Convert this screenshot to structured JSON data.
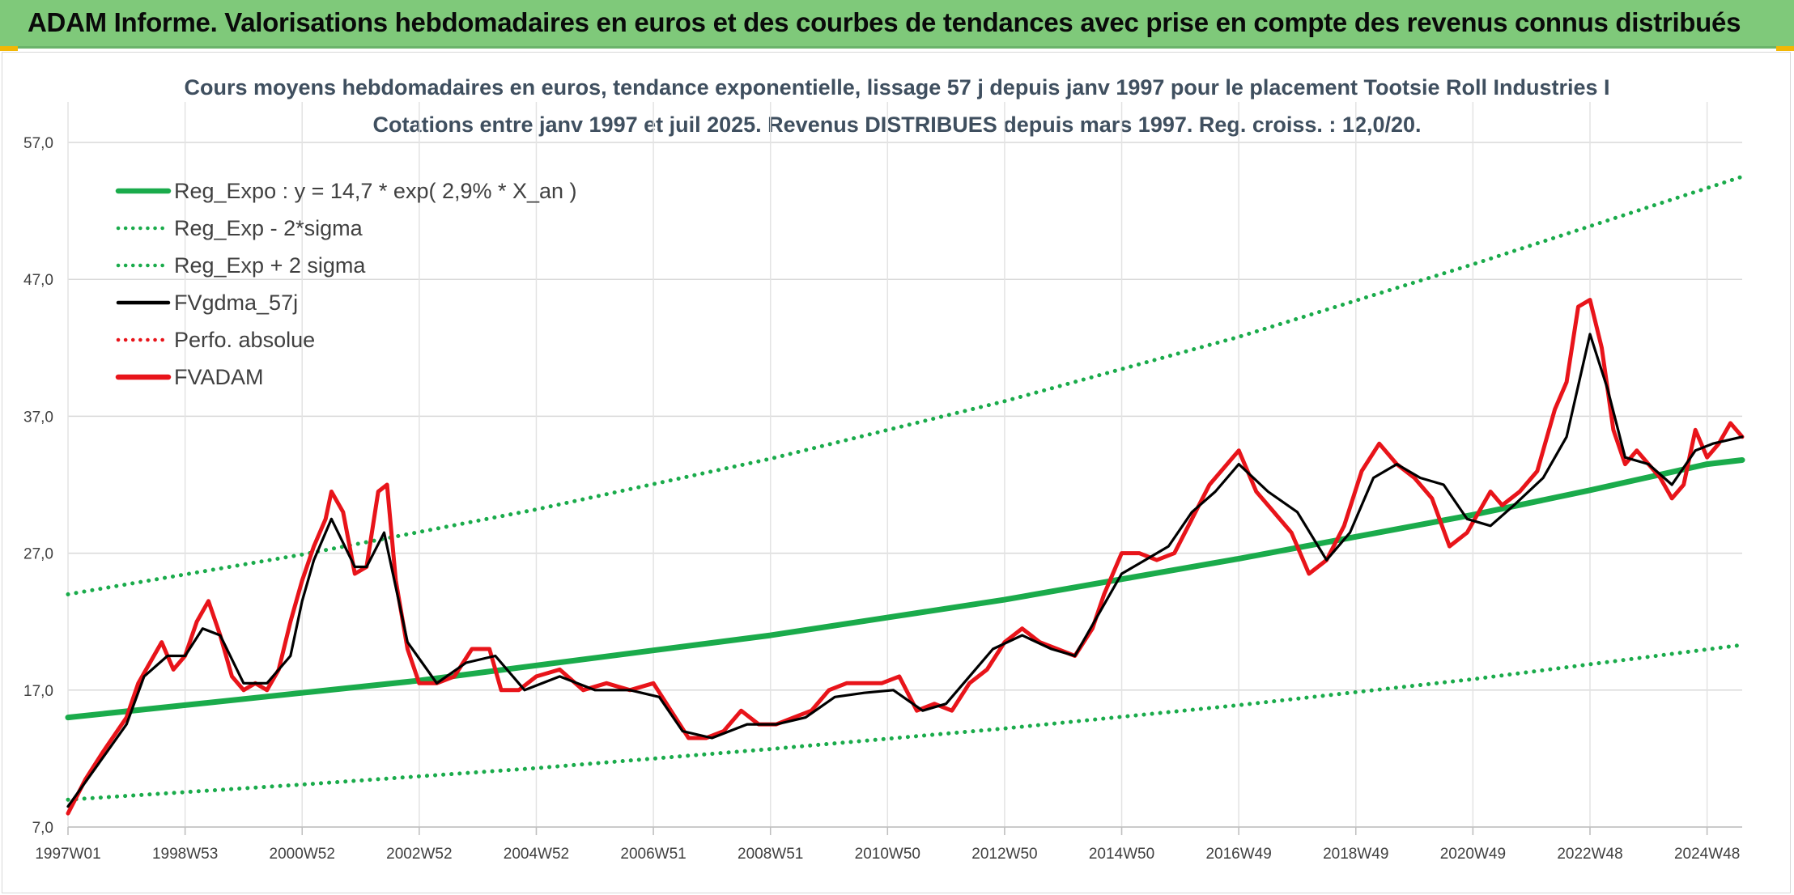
{
  "banner": {
    "title": "ADAM Informe. Valorisations hebdomadaires en euros et des courbes de tendances avec prise en compte des revenus connus distribués",
    "background": "#7fc97a"
  },
  "chart_data": {
    "type": "line",
    "title": "Cours moyens hebdomadaires en euros, tendance exponentielle, lissage 57 j depuis janv 1997 pour le placement Tootsie Roll Industries I",
    "subtitle": "Cotations entre janv 1997 et juil 2025. Revenus DISTRIBUES depuis mars 1997. Reg. croiss. : 12,0/20.",
    "xlabel": "",
    "ylabel": "",
    "ylim": [
      7.0,
      57.0
    ],
    "xlim": [
      1997.0,
      2025.6
    ],
    "y_ticks": [
      "57,0",
      "47,0",
      "37,0",
      "27,0",
      "17,0",
      "7,0"
    ],
    "y_tick_values": [
      57,
      47,
      37,
      27,
      17,
      7
    ],
    "x_ticks": [
      "1997W01",
      "1998W53",
      "2000W52",
      "2002W52",
      "2004W52",
      "2006W51",
      "2008W51",
      "2010W50",
      "2012W50",
      "2014W50",
      "2016W49",
      "2018W49",
      "2020W49",
      "2022W48",
      "2024W48"
    ],
    "x_tick_values": [
      1997.0,
      1999.0,
      2001.0,
      2003.0,
      2005.0,
      2007.0,
      2009.0,
      2011.0,
      2013.0,
      2015.0,
      2017.0,
      2019.0,
      2021.0,
      2023.0,
      2025.0
    ],
    "grid": true,
    "legend_position": "top-left",
    "series": [
      {
        "name": "Reg_Expo : y = 14,7 * exp( 2,9% *  X_an )",
        "color": "#1aab4b",
        "style": "solid",
        "x": [
          1997.0,
          1999.0,
          2001.0,
          2003.0,
          2005.0,
          2007.0,
          2009.0,
          2011.0,
          2013.0,
          2015.0,
          2017.0,
          2019.0,
          2021.0,
          2023.0,
          2025.0,
          2025.6
        ],
        "y": [
          15.0,
          15.9,
          16.8,
          17.7,
          18.8,
          19.9,
          21.0,
          22.3,
          23.6,
          25.1,
          26.6,
          28.2,
          29.8,
          31.6,
          33.5,
          33.8
        ]
      },
      {
        "name": "Reg_Exp - 2*sigma",
        "color": "#1aab4b",
        "style": "dotted",
        "x": [
          1997.0,
          2001.0,
          2005.0,
          2009.0,
          2013.0,
          2017.0,
          2021.0,
          2025.6
        ],
        "y": [
          9.0,
          10.1,
          11.3,
          12.7,
          14.2,
          15.9,
          17.8,
          20.3
        ]
      },
      {
        "name": "Reg_Exp + 2 sigma",
        "color": "#1aab4b",
        "style": "dotted",
        "x": [
          1997.0,
          2001.0,
          2005.0,
          2009.0,
          2013.0,
          2017.0,
          2021.0,
          2025.6
        ],
        "y": [
          24.0,
          26.9,
          30.2,
          33.9,
          38.1,
          42.8,
          48.1,
          54.5
        ]
      },
      {
        "name": "FVgdma_57j",
        "color": "#000000",
        "style": "solid",
        "x": [
          1997.0,
          1997.5,
          1998.0,
          1998.3,
          1998.7,
          1999.0,
          1999.3,
          1999.6,
          2000.0,
          2000.4,
          2000.8,
          2001.0,
          2001.2,
          2001.5,
          2001.9,
          2002.1,
          2002.4,
          2002.8,
          2003.3,
          2003.8,
          2004.3,
          2004.8,
          2005.4,
          2006.0,
          2006.6,
          2007.1,
          2007.5,
          2008.0,
          2008.6,
          2009.1,
          2009.6,
          2010.1,
          2010.6,
          2011.1,
          2011.6,
          2012.0,
          2012.4,
          2012.8,
          2013.3,
          2013.8,
          2014.2,
          2014.6,
          2015.0,
          2015.4,
          2015.8,
          2016.2,
          2016.6,
          2017.0,
          2017.5,
          2018.0,
          2018.5,
          2018.9,
          2019.3,
          2019.7,
          2020.1,
          2020.5,
          2020.9,
          2021.3,
          2021.7,
          2022.2,
          2022.6,
          2023.0,
          2023.3,
          2023.6,
          2024.0,
          2024.4,
          2024.8,
          2025.1,
          2025.6
        ],
        "y": [
          8.5,
          11.5,
          14.5,
          18.0,
          19.5,
          19.5,
          21.5,
          21.0,
          17.5,
          17.5,
          19.5,
          23.5,
          26.5,
          29.5,
          26.0,
          26.0,
          28.5,
          20.5,
          17.5,
          19.0,
          19.5,
          17.0,
          18.0,
          17.0,
          17.0,
          16.5,
          14.0,
          13.5,
          14.5,
          14.5,
          15.0,
          16.5,
          16.8,
          17.0,
          15.5,
          16.0,
          18.0,
          20.0,
          21.0,
          20.0,
          19.5,
          22.5,
          25.5,
          26.5,
          27.5,
          30.0,
          31.5,
          33.5,
          31.5,
          30.0,
          26.5,
          28.5,
          32.5,
          33.5,
          32.5,
          32.0,
          29.5,
          29.0,
          30.5,
          32.5,
          35.5,
          43.0,
          39.0,
          34.0,
          33.5,
          32.0,
          34.5,
          35.0,
          35.5
        ]
      },
      {
        "name": "Perfo. absolue",
        "color": "#e8141a",
        "style": "dotted",
        "x": [],
        "y": []
      },
      {
        "name": "FVADAM",
        "color": "#e8141a",
        "style": "solid",
        "x": [
          1997.0,
          1997.3,
          1997.6,
          1998.0,
          1998.2,
          1998.4,
          1998.6,
          1998.8,
          1999.0,
          1999.2,
          1999.4,
          1999.6,
          1999.8,
          2000.0,
          2000.2,
          2000.4,
          2000.6,
          2000.8,
          2001.0,
          2001.2,
          2001.4,
          2001.5,
          2001.7,
          2001.9,
          2002.1,
          2002.3,
          2002.45,
          2002.6,
          2002.8,
          2003.0,
          2003.3,
          2003.6,
          2003.9,
          2004.2,
          2004.4,
          2004.7,
          2005.0,
          2005.4,
          2005.8,
          2006.2,
          2006.6,
          2007.0,
          2007.3,
          2007.6,
          2007.9,
          2008.2,
          2008.5,
          2008.8,
          2009.1,
          2009.4,
          2009.7,
          2010.0,
          2010.3,
          2010.6,
          2010.9,
          2011.2,
          2011.5,
          2011.8,
          2012.1,
          2012.4,
          2012.7,
          2013.0,
          2013.3,
          2013.6,
          2013.9,
          2014.2,
          2014.5,
          2014.7,
          2015.0,
          2015.3,
          2015.6,
          2015.9,
          2016.2,
          2016.5,
          2016.8,
          2017.0,
          2017.3,
          2017.6,
          2017.9,
          2018.2,
          2018.5,
          2018.8,
          2019.1,
          2019.4,
          2019.7,
          2020.0,
          2020.3,
          2020.6,
          2020.9,
          2021.1,
          2021.3,
          2021.5,
          2021.8,
          2022.1,
          2022.4,
          2022.6,
          2022.8,
          2023.0,
          2023.2,
          2023.4,
          2023.6,
          2023.8,
          2024.0,
          2024.2,
          2024.4,
          2024.6,
          2024.8,
          2025.0,
          2025.2,
          2025.4,
          2025.6
        ],
        "y": [
          8.0,
          10.5,
          12.5,
          15.0,
          17.5,
          19.0,
          20.5,
          18.5,
          19.5,
          22.0,
          23.5,
          21.0,
          18.0,
          17.0,
          17.5,
          17.0,
          18.5,
          22.0,
          25.0,
          27.5,
          29.5,
          31.5,
          30.0,
          25.5,
          26.0,
          31.5,
          32.0,
          25.0,
          20.0,
          17.5,
          17.5,
          18.0,
          20.0,
          20.0,
          17.0,
          17.0,
          18.0,
          18.5,
          17.0,
          17.5,
          17.0,
          17.5,
          15.5,
          13.5,
          13.5,
          14.0,
          15.5,
          14.5,
          14.5,
          15.0,
          15.5,
          17.0,
          17.5,
          17.5,
          17.5,
          18.0,
          15.5,
          16.0,
          15.5,
          17.5,
          18.5,
          20.5,
          21.5,
          20.5,
          20.0,
          19.5,
          21.5,
          24.0,
          27.0,
          27.0,
          26.5,
          27.0,
          29.5,
          32.0,
          33.5,
          34.5,
          31.5,
          30.0,
          28.5,
          25.5,
          26.5,
          29.0,
          33.0,
          35.0,
          33.5,
          32.5,
          31.0,
          27.5,
          28.5,
          30.0,
          31.5,
          30.5,
          31.5,
          33.0,
          37.5,
          39.5,
          45.0,
          45.5,
          42.0,
          36.0,
          33.5,
          34.5,
          33.5,
          32.5,
          31.0,
          32.0,
          36.0,
          34.0,
          35.0,
          36.5,
          35.5
        ]
      }
    ]
  }
}
